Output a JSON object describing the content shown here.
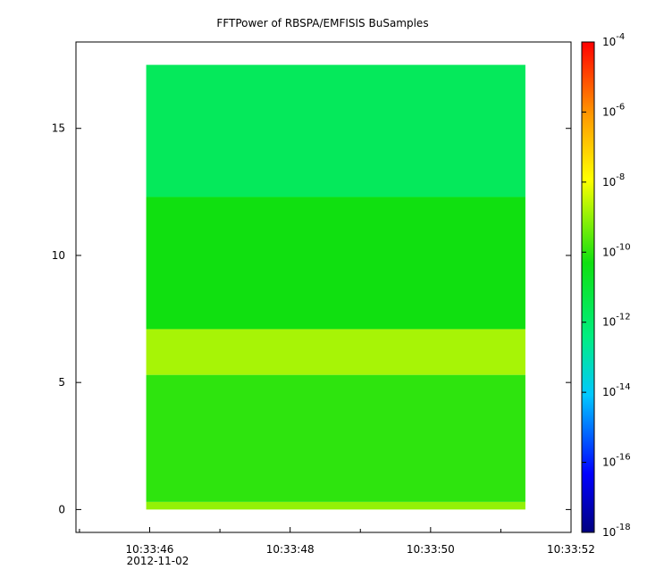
{
  "chart_data": {
    "type": "heatmap",
    "title": "FFTPower of RBSPA/EMFISIS  BuSamples",
    "xlabel": "",
    "ylabel": "",
    "x_ticks": [
      "10:33:46",
      "10:33:48",
      "10:33:50",
      "10:33:52"
    ],
    "x_date_label": "2012-11-02",
    "x_range": [
      "10:33:44.95",
      "10:33:52.0"
    ],
    "y_ticks": [
      0,
      5,
      10,
      15
    ],
    "ylim": [
      -0.9,
      18.4
    ],
    "data_extent": {
      "x": [
        "10:33:45.95",
        "10:33:51.35"
      ],
      "y": [
        0,
        17.5
      ]
    },
    "colorbar": {
      "scale": "log",
      "range": [
        1e-18,
        0.0001
      ],
      "tick_base": "10",
      "tick_exponents": [
        "-4",
        "-6",
        "-8",
        "-10",
        "-12",
        "-14",
        "-16",
        "-18"
      ]
    },
    "bands": [
      {
        "y_range": [
          0,
          0.3
        ],
        "log10_power": -9.0
      },
      {
        "y_range": [
          0.3,
          5.3
        ],
        "log10_power": -10.0
      },
      {
        "y_range": [
          5.3,
          7.1
        ],
        "log10_power": -8.8
      },
      {
        "y_range": [
          7.1,
          12.3
        ],
        "log10_power": -10.3
      },
      {
        "y_range": [
          12.3,
          17.5
        ],
        "log10_power": -11.7
      }
    ],
    "grid": false
  }
}
